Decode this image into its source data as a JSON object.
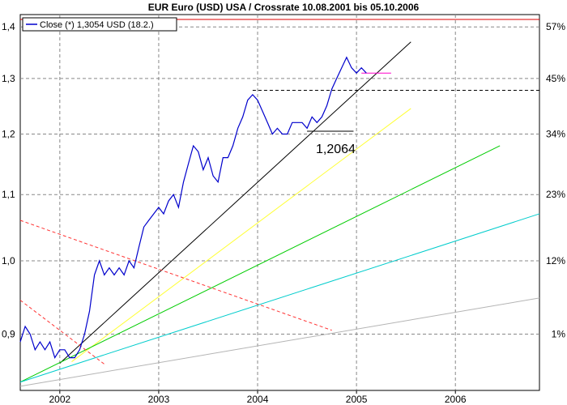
{
  "chart_data": {
    "type": "line",
    "title": "EUR Euro (USD) USA / Crossrate 10.08.2001 bis 05.10.2006",
    "xlabel": "",
    "ylabel": "",
    "x_ticks": [
      "2002",
      "2003",
      "2004",
      "2005",
      "2006"
    ],
    "x_tick_values": [
      2002.0,
      2003.0,
      2004.0,
      2005.0,
      2006.0
    ],
    "xlim": [
      2001.6,
      2006.85
    ],
    "y_ticks_left": [
      "0,9",
      "1,0",
      "1,1",
      "1,2",
      "1,3",
      "1,4"
    ],
    "y_tick_values_left": [
      0.9,
      1.0,
      1.1,
      1.2,
      1.3,
      1.4
    ],
    "y_ticks_right": [
      "1%",
      "12%",
      "23%",
      "34%",
      "45%",
      "57%"
    ],
    "y_tick_values_right": [
      1,
      12,
      23,
      34,
      45,
      57
    ],
    "ylim": [
      0.83,
      1.425
    ],
    "y_scale": "log",
    "grid": true,
    "legend": {
      "position": "top-left",
      "entries": [
        "Close (*) 1,3054 USD (18.2.)"
      ]
    },
    "annotations": [
      {
        "text": "1,2064",
        "x": 2004.85,
        "y": 1.19
      }
    ],
    "series": [
      {
        "name": "Close (*) 1,3054 USD (18.2.)",
        "color": "#0000cc",
        "x": [
          2001.6,
          2001.65,
          2001.7,
          2001.75,
          2001.8,
          2001.85,
          2001.9,
          2001.95,
          2002.0,
          2002.05,
          2002.1,
          2002.15,
          2002.2,
          2002.25,
          2002.3,
          2002.35,
          2002.4,
          2002.45,
          2002.5,
          2002.55,
          2002.6,
          2002.65,
          2002.7,
          2002.75,
          2002.8,
          2002.85,
          2002.9,
          2002.95,
          2003.0,
          2003.05,
          2003.1,
          2003.15,
          2003.2,
          2003.25,
          2003.3,
          2003.35,
          2003.4,
          2003.45,
          2003.5,
          2003.55,
          2003.6,
          2003.65,
          2003.7,
          2003.75,
          2003.8,
          2003.85,
          2003.9,
          2003.95,
          2004.0,
          2004.05,
          2004.1,
          2004.15,
          2004.2,
          2004.25,
          2004.3,
          2004.35,
          2004.4,
          2004.45,
          2004.5,
          2004.55,
          2004.6,
          2004.65,
          2004.7,
          2004.75,
          2004.8,
          2004.85,
          2004.9,
          2004.95,
          2005.0,
          2005.05,
          2005.1
        ],
        "values": [
          0.89,
          0.91,
          0.9,
          0.88,
          0.89,
          0.88,
          0.89,
          0.87,
          0.88,
          0.88,
          0.87,
          0.87,
          0.88,
          0.9,
          0.93,
          0.98,
          1.0,
          0.98,
          0.99,
          0.98,
          0.99,
          0.98,
          1.0,
          0.99,
          1.02,
          1.05,
          1.06,
          1.07,
          1.08,
          1.07,
          1.09,
          1.1,
          1.08,
          1.12,
          1.15,
          1.18,
          1.17,
          1.14,
          1.16,
          1.13,
          1.12,
          1.16,
          1.16,
          1.18,
          1.21,
          1.23,
          1.26,
          1.27,
          1.26,
          1.24,
          1.22,
          1.2,
          1.21,
          1.2,
          1.2,
          1.22,
          1.22,
          1.22,
          1.21,
          1.23,
          1.22,
          1.23,
          1.25,
          1.28,
          1.3,
          1.32,
          1.34,
          1.32,
          1.31,
          1.32,
          1.31
        ]
      }
    ],
    "trendlines": [
      {
        "color": "#000000",
        "style": "solid",
        "x": [
          2002.0,
          2005.55
        ],
        "y": [
          0.863,
          1.37
        ]
      },
      {
        "color": "#ffff33",
        "style": "solid",
        "x": [
          2002.12,
          2005.55
        ],
        "y": [
          0.865,
          1.245
        ]
      },
      {
        "color": "#00cc00",
        "style": "solid",
        "x": [
          2001.6,
          2006.45
        ],
        "y": [
          0.84,
          1.18
        ]
      },
      {
        "color": "#00cccc",
        "style": "solid",
        "x": [
          2001.6,
          2006.85
        ],
        "y": [
          0.84,
          1.07
        ]
      },
      {
        "color": "#b4b4b4",
        "style": "solid",
        "x": [
          2001.6,
          2006.85
        ],
        "y": [
          0.835,
          0.948
        ]
      },
      {
        "color": "#ff3333",
        "style": "dashed",
        "x": [
          2001.6,
          2004.75
        ],
        "y": [
          1.06,
          0.905
        ]
      },
      {
        "color": "#ff3333",
        "style": "dashed",
        "x": [
          2001.6,
          2002.45
        ],
        "y": [
          0.945,
          0.862
        ]
      },
      {
        "color": "#000000",
        "style": "dashed",
        "x": [
          2003.95,
          2006.85
        ],
        "y": [
          1.278,
          1.278
        ]
      },
      {
        "color": "#000000",
        "style": "solid",
        "x": [
          2004.5,
          2004.97
        ],
        "y": [
          1.205,
          1.205
        ]
      },
      {
        "color": "#ff00cc",
        "style": "solid",
        "x": [
          2005.05,
          2005.35
        ],
        "y": [
          1.31,
          1.31
        ]
      },
      {
        "color": "#dd0000",
        "style": "solid",
        "x": [
          2001.6,
          2006.85
        ],
        "y": [
          1.415,
          1.415
        ]
      }
    ]
  }
}
